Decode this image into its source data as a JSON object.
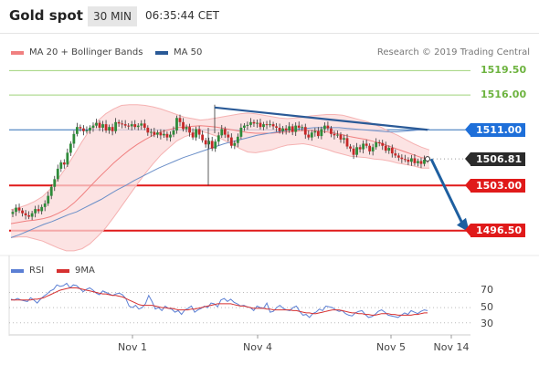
{
  "header": {
    "title": "Gold spot",
    "interval": "30 MIN",
    "time": "06:35:44 CET"
  },
  "legend": {
    "bollinger": {
      "label": "MA 20 + Bollinger Bands",
      "color": "#f08080"
    },
    "ma50": {
      "label": "MA 50",
      "color": "#2a5a97"
    },
    "credit": "Research © 2019 Trading Central"
  },
  "rsi_legend": {
    "rsi": {
      "label": "RSI",
      "color": "#5b7fd4"
    },
    "ma9": {
      "label": "9MA",
      "color": "#d63030"
    }
  },
  "chart_data": [
    {
      "type": "candlestick",
      "x_labels": [
        "Nov 1",
        "Nov 4",
        "Nov 5",
        "Nov 14"
      ],
      "ylim": [
        1494.5,
        1521
      ],
      "levels": [
        {
          "label": "1519.50",
          "value": 1519.5,
          "color": "#6db33f"
        },
        {
          "label": "1516.00",
          "value": 1516.0,
          "color": "#6db33f"
        },
        {
          "label": "1511.00",
          "value": 1511.0,
          "color": "#1e6fd9"
        },
        {
          "label": "1506.81",
          "value": 1506.81,
          "color": "#2b2b2b"
        },
        {
          "label": "1503.00",
          "value": 1503.0,
          "color": "#e01a1a"
        },
        {
          "label": "1496.50",
          "value": 1496.5,
          "color": "#e01a1a"
        }
      ],
      "close": [
        1499.2,
        1499.8,
        1499.4,
        1499.0,
        1498.7,
        1498.5,
        1499.0,
        1499.6,
        1499.3,
        1499.9,
        1500.4,
        1501.5,
        1502.8,
        1503.9,
        1505.4,
        1506.3,
        1506.0,
        1507.7,
        1509.0,
        1510.4,
        1511.4,
        1511.2,
        1510.8,
        1510.9,
        1511.3,
        1511.6,
        1512.0,
        1511.3,
        1511.8,
        1510.9,
        1511.4,
        1510.8,
        1512.1,
        1511.9,
        1511.8,
        1511.6,
        1511.5,
        1511.8,
        1511.4,
        1511.6,
        1511.9,
        1511.3,
        1510.6,
        1510.7,
        1510.3,
        1510.6,
        1510.2,
        1510.4,
        1509.9,
        1510.3,
        1510.9,
        1512.7,
        1512.1,
        1511.1,
        1511.4,
        1510.6,
        1509.9,
        1511.1,
        1510.3,
        1509.5,
        1508.9,
        1509.4,
        1508.3,
        1509.3,
        1510.2,
        1511.1,
        1510.3,
        1509.9,
        1508.7,
        1509.1,
        1510.0,
        1511.3,
        1511.6,
        1511.7,
        1512.1,
        1511.9,
        1512.0,
        1511.4,
        1511.8,
        1511.7,
        1511.8,
        1511.5,
        1511.3,
        1510.8,
        1511.2,
        1510.9,
        1511.5,
        1510.7,
        1511.6,
        1511.3,
        1511.4,
        1510.3,
        1509.9,
        1510.6,
        1510.8,
        1510.1,
        1511.1,
        1511.6,
        1511.2,
        1510.4,
        1510.2,
        1510.3,
        1509.6,
        1509.8,
        1508.6,
        1508.3,
        1507.4,
        1508.5,
        1508.2,
        1509.0,
        1508.7,
        1507.9,
        1508.5,
        1509.2,
        1509.1,
        1508.7,
        1508.0,
        1508.4,
        1507.6,
        1507.3,
        1507.0,
        1506.8,
        1506.7,
        1506.4,
        1506.9,
        1506.2,
        1506.5,
        1506.1,
        1506.7,
        1506.8
      ],
      "ma50_series": [
        1495.5,
        1495.9,
        1496.4,
        1496.9,
        1497.4,
        1497.8,
        1498.3,
        1498.8,
        1499.2,
        1499.8,
        1500.4,
        1501.0,
        1501.7,
        1502.4,
        1503.0,
        1503.7,
        1504.3,
        1504.9,
        1505.5,
        1506.0,
        1506.5,
        1507.0,
        1507.4,
        1507.8,
        1508.2,
        1508.6,
        1509.0,
        1509.3,
        1509.6,
        1509.9,
        1510.2,
        1510.4,
        1510.6,
        1510.8,
        1511.0,
        1511.1,
        1511.2,
        1511.3,
        1511.3,
        1511.3,
        1511.3,
        1511.2,
        1511.1,
        1511.0,
        1510.9,
        1510.8,
        1510.7,
        1510.7,
        1510.8,
        1510.9,
        1511.0,
        1511.1
      ],
      "ma20_series": [
        1497.5,
        1497.7,
        1497.9,
        1498.0,
        1498.2,
        1498.5,
        1499.0,
        1499.6,
        1500.5,
        1501.6,
        1502.8,
        1504.0,
        1505.1,
        1506.2,
        1507.2,
        1508.1,
        1508.9,
        1509.6,
        1510.2,
        1510.7,
        1511.0,
        1511.3,
        1511.4,
        1511.5,
        1511.6,
        1511.5,
        1511.4,
        1511.2,
        1511.0,
        1510.8,
        1510.6,
        1510.5,
        1510.5,
        1510.5,
        1510.6,
        1510.7,
        1510.8,
        1510.9,
        1510.9,
        1510.8,
        1510.7,
        1510.5,
        1510.3,
        1510.0,
        1509.8,
        1509.6,
        1509.3,
        1509.0,
        1508.6,
        1508.2,
        1507.8,
        1507.4,
        1507.0,
        1506.8
      ],
      "bollinger_upper": [
        1499.5,
        1499.8,
        1500.2,
        1500.7,
        1501.4,
        1502.5,
        1504.0,
        1505.6,
        1507.4,
        1509.3,
        1511.0,
        1512.3,
        1513.3,
        1514.0,
        1514.5,
        1514.6,
        1514.6,
        1514.5,
        1514.3,
        1514.0,
        1513.6,
        1513.2,
        1512.8,
        1512.6,
        1512.4,
        1512.5,
        1512.7,
        1512.9,
        1513.1,
        1513.3,
        1513.4,
        1513.3,
        1513.1,
        1512.9,
        1512.7,
        1512.6,
        1512.7,
        1512.8,
        1513.0,
        1513.1,
        1513.2,
        1513.2,
        1513.1,
        1512.8,
        1512.5,
        1512.2,
        1511.8,
        1511.3,
        1510.7,
        1510.2,
        1509.6,
        1509.0,
        1508.5,
        1508.1
      ],
      "bollinger_lower": [
        1495.5,
        1495.6,
        1495.6,
        1495.3,
        1495.0,
        1494.5,
        1494.0,
        1493.6,
        1493.6,
        1493.9,
        1494.6,
        1495.7,
        1496.9,
        1498.4,
        1500.0,
        1501.6,
        1503.2,
        1504.7,
        1506.1,
        1507.4,
        1508.4,
        1509.4,
        1510.0,
        1510.4,
        1510.8,
        1510.5,
        1510.1,
        1509.5,
        1508.9,
        1508.3,
        1507.8,
        1507.7,
        1507.9,
        1508.1,
        1508.5,
        1508.8,
        1508.9,
        1509.0,
        1508.8,
        1508.5,
        1508.2,
        1507.8,
        1507.5,
        1507.2,
        1507.1,
        1507.0,
        1506.8,
        1506.7,
        1506.5,
        1506.2,
        1506.0,
        1505.8,
        1505.5,
        1505.5
      ],
      "trendline": {
        "from": 1514.2,
        "to": 1511.0
      },
      "forecast_arrow": {
        "from": 1506.8,
        "to": 1496.5
      }
    },
    {
      "type": "line",
      "series": [
        {
          "name": "RSI",
          "values": [
            61,
            60,
            62,
            60,
            59,
            58,
            63,
            60,
            56,
            61,
            65,
            68,
            72,
            74,
            80,
            78,
            79,
            82,
            76,
            80,
            79,
            75,
            71,
            74,
            76,
            73,
            69,
            67,
            72,
            70,
            68,
            66,
            68,
            69,
            67,
            62,
            52,
            50,
            53,
            48,
            50,
            55,
            66,
            58,
            48,
            50,
            46,
            52,
            49,
            48,
            44,
            46,
            41,
            47,
            49,
            52,
            44,
            47,
            49,
            52,
            50,
            56,
            55,
            51,
            60,
            62,
            58,
            61,
            57,
            55,
            52,
            53,
            51,
            50,
            46,
            52,
            50,
            49,
            56,
            44,
            45,
            50,
            53,
            49,
            47,
            46,
            50,
            52,
            45,
            40,
            41,
            37,
            42,
            44,
            48,
            46,
            52,
            51,
            50,
            47,
            45,
            46,
            42,
            40,
            39,
            43,
            45,
            46,
            41,
            37,
            38,
            41,
            45,
            47,
            44,
            40,
            39,
            38,
            37,
            40,
            43,
            41,
            46,
            44,
            42,
            45,
            47,
            46
          ]
        },
        {
          "name": "9MA",
          "values": [
            60,
            60,
            60,
            60,
            60,
            60,
            60,
            61,
            61,
            62,
            63,
            65,
            67,
            69,
            71,
            73,
            74,
            75,
            76,
            76,
            76,
            75,
            74,
            73,
            72,
            71,
            70,
            69,
            68,
            68,
            67,
            66,
            66,
            65,
            64,
            62,
            60,
            58,
            56,
            54,
            53,
            53,
            53,
            53,
            52,
            51,
            50,
            50,
            49,
            49,
            48,
            47,
            47,
            47,
            47,
            48,
            48,
            49,
            50,
            51,
            52,
            53,
            54,
            55,
            55,
            55,
            55,
            55,
            54,
            53,
            52,
            52,
            51,
            50,
            49,
            49,
            49,
            49,
            48,
            48,
            47,
            47,
            47,
            47,
            47,
            47,
            46,
            46,
            45,
            44,
            43,
            43,
            42,
            42,
            43,
            44,
            45,
            46,
            47,
            47,
            47,
            46,
            45,
            44,
            43,
            43,
            42,
            42,
            41,
            41,
            40,
            40,
            41,
            42,
            42,
            42,
            41,
            41,
            40,
            40,
            40,
            40,
            40,
            41,
            41,
            42,
            43,
            43
          ]
        }
      ],
      "y_ticks": [
        "70",
        "50",
        "30"
      ],
      "ylim": [
        20,
        85
      ]
    }
  ]
}
